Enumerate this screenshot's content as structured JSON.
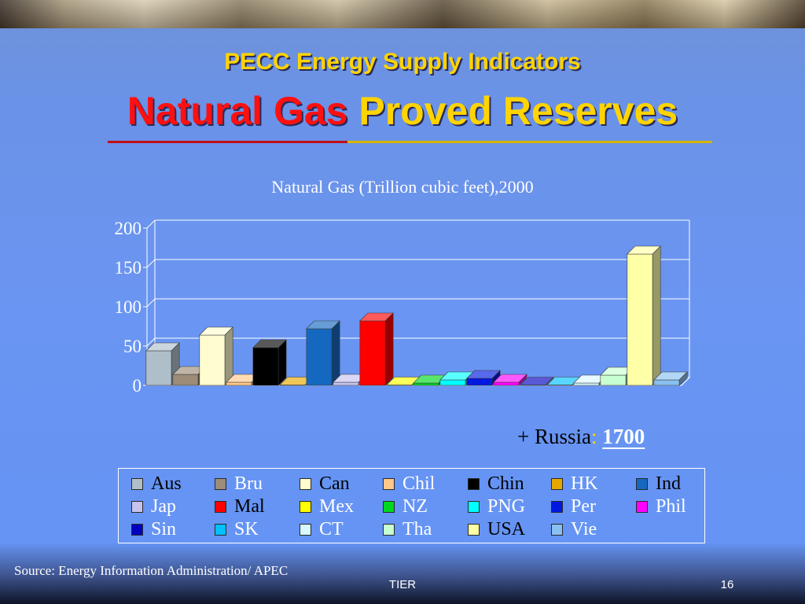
{
  "slide": {
    "title_line1": "PECC Energy Supply Indicators",
    "title_line2_red": "Natural  Gas",
    "title_line2_yellow": "Proved  Reserves",
    "russia_prefix": "+ Russia",
    "russia_colon": ":",
    "russia_value": "1700",
    "source": "Source: Energy Information Administration/ APEC",
    "footer_center": "TIER",
    "page_number": "16"
  },
  "chart_data": {
    "type": "bar",
    "title": "Natural Gas (Trillion cubic feet),2000",
    "xlabel": "",
    "ylabel": "",
    "ylim": [
      0,
      200
    ],
    "yticks": [
      "0",
      "50",
      "100",
      "150",
      "200"
    ],
    "grid": true,
    "legend": "bottom",
    "categories": [
      "Aus",
      "Bru",
      "Can",
      "Chil",
      "Chin",
      "HK",
      "Ind",
      "Jap",
      "Mal",
      "Mex",
      "NZ",
      "PNG",
      "Per",
      "Phil",
      "Sin",
      "SK",
      "CT",
      "Tha",
      "USA",
      "Vie"
    ],
    "values": [
      44,
      14,
      64,
      4,
      48,
      0,
      72,
      4,
      82,
      0,
      3,
      7,
      9,
      4,
      0,
      0,
      3,
      13,
      167,
      7
    ],
    "colors": [
      "#aebfca",
      "#9c8c78",
      "#fffccf",
      "#ffc888",
      "#000000",
      "#e6a800",
      "#1468c0",
      "#c6c3ef",
      "#ff0000",
      "#ffff00",
      "#00d820",
      "#00ffff",
      "#0018e0",
      "#ff00ff",
      "#0000c0",
      "#00c0ff",
      "#d8f8ff",
      "#c8ffd0",
      "#ffffa8",
      "#88c0f0"
    ],
    "legend_label_colors": [
      "#000000",
      "#ffffff",
      "#000000",
      "#ffffff",
      "#000000",
      "#ffffff",
      "#000000",
      "#ffffff",
      "#000000",
      "#ffffff",
      "#ffffff",
      "#ffffff",
      "#ffffff",
      "#ffffff",
      "#ffffff",
      "#ffffff",
      "#ffffff",
      "#ffffff",
      "#000000",
      "#ffffff"
    ]
  }
}
